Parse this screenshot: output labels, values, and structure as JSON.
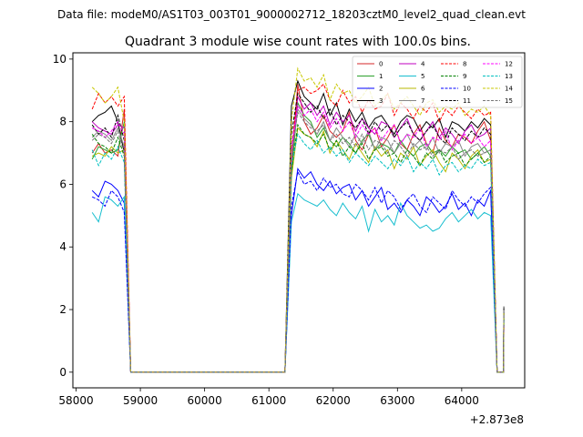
{
  "chart_data": {
    "type": "line",
    "suptitle": "Data file: modeM0/AS1T03_003T01_9000002712_18203cztM0_level2_quad_clean.evt",
    "title": "Quadrant 3 module wise count rates with 100.0s bins.",
    "xlabel": "",
    "ylabel": "",
    "x_offset_label": "+2.873e8",
    "xlim": [
      57950,
      64980
    ],
    "ylim": [
      -0.5,
      10.2
    ],
    "xticks": [
      58000,
      59000,
      60000,
      61000,
      62000,
      63000,
      64000
    ],
    "yticks": [
      0,
      2,
      4,
      6,
      8,
      10
    ],
    "bin_x": [
      58250,
      58350,
      58450,
      58550,
      58650,
      58750,
      58850,
      58950,
      59050,
      59150,
      59250,
      59350,
      59450,
      59550,
      59650,
      59750,
      59850,
      59950,
      60050,
      60150,
      60250,
      60350,
      60450,
      60550,
      60650,
      60750,
      60850,
      60950,
      61050,
      61150,
      61250,
      61350,
      61450,
      61550,
      61650,
      61750,
      61850,
      61950,
      62050,
      62150,
      62250,
      62350,
      62450,
      62550,
      62650,
      62750,
      62850,
      62950,
      63050,
      63150,
      63250,
      63350,
      63450,
      63550,
      63650,
      63750,
      63850,
      63950,
      64050,
      64150,
      64250,
      64350,
      64450,
      64550,
      64650
    ],
    "zero_range": [
      58850,
      61350
    ],
    "dead_markers": [
      {
        "x": 58850,
        "y": 0
      },
      {
        "x": 64650,
        "y": 1.5
      }
    ],
    "series": [
      {
        "name": "0",
        "color": "#d62728",
        "dash": "solid",
        "seg1": [
          7.0,
          7.3,
          7.0,
          7.1,
          6.9,
          8.4
        ],
        "seg2": [
          6.5,
          9.2,
          8.0,
          7.6,
          7.8,
          8.2,
          7.7,
          7.5,
          7.7,
          8.3,
          7.4,
          7.1,
          7.6,
          7.8,
          7.2,
          7.5,
          7.9,
          7.3,
          7.1,
          7.6,
          7.9,
          7.3,
          7.0,
          7.8,
          7.4,
          7.2,
          7.6,
          7.5,
          7.3,
          7.7,
          8.0,
          7.4
        ]
      },
      {
        "name": "1",
        "color": "#2ca02c",
        "dash": "solid",
        "seg1": [
          6.8,
          7.2,
          7.1,
          7.0,
          7.1,
          8.0
        ],
        "seg2": [
          6.3,
          8.6,
          8.2,
          8.0,
          7.5,
          7.8,
          7.4,
          7.2,
          7.5,
          7.3,
          7.0,
          7.4,
          7.6,
          7.1,
          7.3,
          7.2,
          7.0,
          7.4,
          7.1,
          6.9,
          7.2,
          7.3,
          7.0,
          7.1,
          6.9,
          7.2,
          7.0,
          7.1,
          6.8,
          7.0,
          7.2,
          6.9
        ]
      },
      {
        "name": "2",
        "color": "#0000ff",
        "dash": "solid",
        "seg1": [
          5.8,
          5.6,
          6.1,
          6.0,
          5.8,
          5.4
        ],
        "seg2": [
          5.0,
          6.5,
          6.2,
          6.4,
          6.0,
          5.8,
          6.1,
          5.7,
          5.9,
          6.0,
          5.5,
          5.8,
          5.3,
          5.6,
          5.9,
          5.2,
          5.4,
          5.1,
          5.5,
          5.3,
          5.0,
          5.6,
          5.4,
          5.1,
          5.3,
          5.7,
          5.2,
          5.4,
          5.0,
          5.5,
          5.3,
          5.8
        ]
      },
      {
        "name": "3",
        "color": "#000000",
        "dash": "solid",
        "seg1": [
          8.0,
          8.2,
          8.3,
          8.5,
          8.0,
          7.0
        ],
        "seg2": [
          8.5,
          9.3,
          8.8,
          8.6,
          8.4,
          8.9,
          8.2,
          8.6,
          7.9,
          8.4,
          8.0,
          8.3,
          7.8,
          8.1,
          8.2,
          7.9,
          7.6,
          8.0,
          8.2,
          8.1,
          7.7,
          8.0,
          7.8,
          8.1,
          7.5,
          8.0,
          7.9,
          7.7,
          8.0,
          7.8,
          8.1,
          7.9
        ]
      },
      {
        "name": "4",
        "color": "#c000c0",
        "dash": "solid",
        "seg1": [
          8.0,
          7.8,
          7.7,
          7.6,
          7.9,
          7.8
        ],
        "seg2": [
          7.0,
          8.8,
          8.4,
          8.6,
          8.2,
          8.5,
          7.9,
          8.3,
          8.0,
          8.2,
          7.7,
          8.1,
          7.8,
          7.6,
          8.0,
          7.9,
          7.5,
          7.8,
          8.1,
          7.6,
          7.4,
          7.7,
          8.0,
          7.5,
          7.8,
          7.6,
          7.3,
          7.7,
          7.9,
          7.5,
          7.6,
          7.8
        ]
      },
      {
        "name": "5",
        "color": "#17becf",
        "dash": "solid",
        "seg1": [
          5.1,
          4.8,
          5.6,
          5.5,
          5.3,
          5.6
        ],
        "seg2": [
          4.8,
          5.7,
          5.5,
          5.4,
          5.3,
          5.5,
          5.2,
          5.0,
          5.4,
          5.1,
          4.9,
          5.3,
          4.5,
          5.2,
          4.8,
          5.0,
          4.7,
          5.4,
          5.0,
          4.8,
          4.6,
          4.7,
          4.5,
          4.6,
          4.9,
          5.1,
          4.8,
          5.0,
          5.2,
          4.9,
          5.1,
          5.0
        ]
      },
      {
        "name": "6",
        "color": "#b8b800",
        "dash": "solid",
        "seg1": [
          6.9,
          7.0,
          6.9,
          7.2,
          7.0,
          7.1
        ],
        "seg2": [
          6.2,
          7.8,
          7.6,
          7.5,
          7.2,
          7.7,
          7.0,
          7.4,
          7.1,
          6.8,
          7.3,
          7.0,
          6.7,
          7.2,
          6.9,
          7.1,
          6.5,
          7.0,
          6.8,
          7.2,
          6.6,
          6.9,
          7.1,
          6.7,
          6.4,
          7.0,
          6.8,
          6.5,
          6.9,
          7.1,
          6.7,
          6.8
        ]
      },
      {
        "name": "7",
        "color": "#888888",
        "dash": "solid",
        "seg1": [
          7.5,
          7.7,
          7.6,
          7.4,
          7.8,
          7.2
        ],
        "seg2": [
          6.8,
          8.4,
          8.1,
          7.9,
          7.6,
          8.0,
          7.4,
          7.8,
          7.5,
          7.2,
          7.6,
          7.3,
          7.7,
          7.1,
          7.5,
          7.4,
          7.0,
          7.3,
          7.6,
          7.2,
          7.4,
          7.1,
          7.5,
          7.0,
          7.3,
          7.2,
          7.4,
          6.9,
          7.2,
          7.3,
          7.0,
          7.1
        ]
      },
      {
        "name": "8",
        "color": "#ff0000",
        "dash": "dashed",
        "seg1": [
          8.4,
          8.9,
          8.6,
          8.8,
          8.5,
          8.8
        ],
        "seg2": [
          7.0,
          9.0,
          9.1,
          8.9,
          9.0,
          9.2,
          8.7,
          8.5,
          9.0,
          8.6,
          8.8,
          8.3,
          8.7,
          8.4,
          8.5,
          8.9,
          8.2,
          8.6,
          8.4,
          8.1,
          8.5,
          8.3,
          8.6,
          8.0,
          8.4,
          8.2,
          8.5,
          8.3,
          8.1,
          8.4,
          8.2,
          8.3
        ]
      },
      {
        "name": "9",
        "color": "#008000",
        "dash": "dashed",
        "seg1": [
          7.6,
          7.3,
          7.2,
          7.0,
          7.5,
          6.9
        ],
        "seg2": [
          6.4,
          7.9,
          7.6,
          7.5,
          7.3,
          7.6,
          7.1,
          7.4,
          6.9,
          7.2,
          7.0,
          7.3,
          6.8,
          7.1,
          7.2,
          6.9,
          7.0,
          6.7,
          7.1,
          6.9,
          6.6,
          7.0,
          6.8,
          7.1,
          6.7,
          6.9,
          7.0,
          6.6,
          6.8,
          7.0,
          6.7,
          6.9
        ]
      },
      {
        "name": "10",
        "color": "#0000ff",
        "dash": "dashed",
        "seg1": [
          5.6,
          5.5,
          5.3,
          5.8,
          5.6,
          5.1
        ],
        "seg2": [
          5.3,
          6.4,
          6.0,
          6.1,
          5.8,
          6.2,
          5.9,
          6.0,
          5.7,
          5.6,
          6.0,
          5.8,
          5.5,
          5.9,
          5.4,
          5.8,
          5.6,
          5.2,
          5.5,
          5.7,
          5.3,
          5.1,
          5.6,
          5.4,
          5.2,
          5.8,
          5.5,
          5.3,
          5.6,
          5.4,
          5.7,
          5.9
        ]
      },
      {
        "name": "11",
        "color": "#000000",
        "dash": "dashed",
        "seg1": [
          7.9,
          7.6,
          7.8,
          7.5,
          8.2,
          7.4
        ],
        "seg2": [
          7.6,
          8.9,
          8.6,
          8.3,
          8.5,
          8.1,
          8.4,
          7.9,
          8.2,
          8.0,
          7.8,
          8.1,
          7.6,
          8.0,
          7.7,
          7.9,
          7.5,
          7.8,
          8.0,
          7.6,
          7.4,
          7.7,
          7.9,
          7.5,
          7.3,
          7.8,
          7.6,
          7.4,
          7.7,
          7.5,
          7.8,
          7.6
        ]
      },
      {
        "name": "12",
        "color": "#ff00ff",
        "dash": "dashed",
        "seg1": [
          7.8,
          7.7,
          7.5,
          7.7,
          8.0,
          7.6
        ],
        "seg2": [
          7.1,
          8.5,
          8.2,
          8.4,
          8.0,
          8.3,
          7.8,
          8.1,
          7.7,
          8.0,
          7.5,
          7.9,
          7.6,
          7.8,
          7.4,
          7.7,
          7.9,
          7.3,
          7.6,
          7.5,
          7.8,
          7.2,
          7.5,
          7.4,
          7.7,
          7.1,
          7.4,
          7.6,
          7.3,
          7.5,
          7.2,
          7.4
        ]
      },
      {
        "name": "13",
        "color": "#00c0c0",
        "dash": "dashed",
        "seg1": [
          7.1,
          6.6,
          7.0,
          6.8,
          7.2,
          6.7
        ],
        "seg2": [
          6.6,
          7.6,
          7.3,
          7.1,
          7.4,
          7.0,
          7.2,
          6.9,
          7.1,
          6.7,
          7.0,
          6.8,
          6.6,
          6.9,
          6.7,
          6.5,
          6.8,
          6.6,
          6.9,
          6.4,
          6.7,
          6.5,
          6.8,
          6.3,
          6.6,
          6.7,
          6.4,
          6.6,
          6.5,
          6.8,
          6.6,
          6.7
        ]
      },
      {
        "name": "14",
        "color": "#c8c800",
        "dash": "dashed",
        "seg1": [
          9.1,
          8.9,
          8.6,
          8.8,
          9.1,
          8.0
        ],
        "seg2": [
          8.0,
          9.7,
          9.3,
          9.4,
          9.1,
          9.5,
          8.7,
          9.2,
          8.9,
          9.0,
          8.6,
          8.8,
          9.1,
          8.5,
          8.7,
          8.9,
          8.4,
          8.6,
          8.8,
          8.5,
          8.2,
          8.6,
          8.7,
          8.3,
          8.5,
          8.4,
          8.6,
          8.2,
          8.4,
          8.3,
          8.5,
          8.2
        ]
      },
      {
        "name": "15",
        "color": "#777777",
        "dash": "dashed",
        "seg1": [
          7.4,
          7.6,
          7.5,
          7.3,
          7.7,
          7.0
        ],
        "seg2": [
          6.9,
          8.3,
          8.0,
          7.8,
          7.7,
          7.9,
          7.4,
          7.6,
          7.3,
          7.5,
          7.2,
          7.6,
          7.1,
          7.4,
          7.3,
          7.0,
          7.4,
          7.2,
          6.9,
          7.3,
          7.1,
          7.2,
          6.9,
          7.1,
          7.0,
          7.2,
          6.8,
          7.0,
          7.1,
          6.9,
          7.0,
          7.1
        ]
      }
    ]
  }
}
